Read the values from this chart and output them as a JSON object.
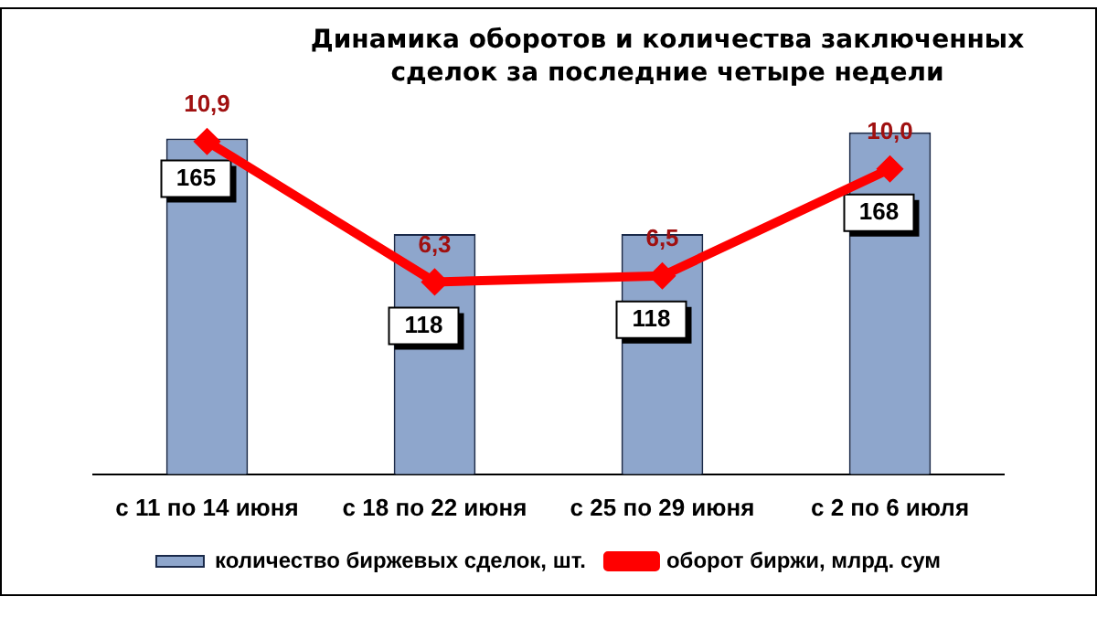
{
  "chart_data": {
    "type": "bar",
    "title": "Динамика оборотов и количества заключенных сделок за последние четыре недели",
    "categories": [
      "с 11 по 14 июня",
      "с 18 по 22 июня",
      "с 25 по 29 июня",
      "с 2 по 6 июля"
    ],
    "series": [
      {
        "name": "количество биржевых сделок, шт.",
        "color": "#8ea6cc",
        "values": [
          165,
          118,
          118,
          168
        ],
        "value_labels": [
          "165",
          "118",
          "118",
          "168"
        ]
      },
      {
        "name": "оборот биржи, млрд. сум",
        "type": "line",
        "axis": "y2",
        "color": "#ff0000",
        "marker": "diamond",
        "values": [
          10.9,
          6.3,
          6.5,
          10.0
        ],
        "value_labels": [
          "10,9",
          "6,3",
          "6,5",
          "10,0"
        ]
      }
    ],
    "legend": "bottom",
    "grid": false
  }
}
